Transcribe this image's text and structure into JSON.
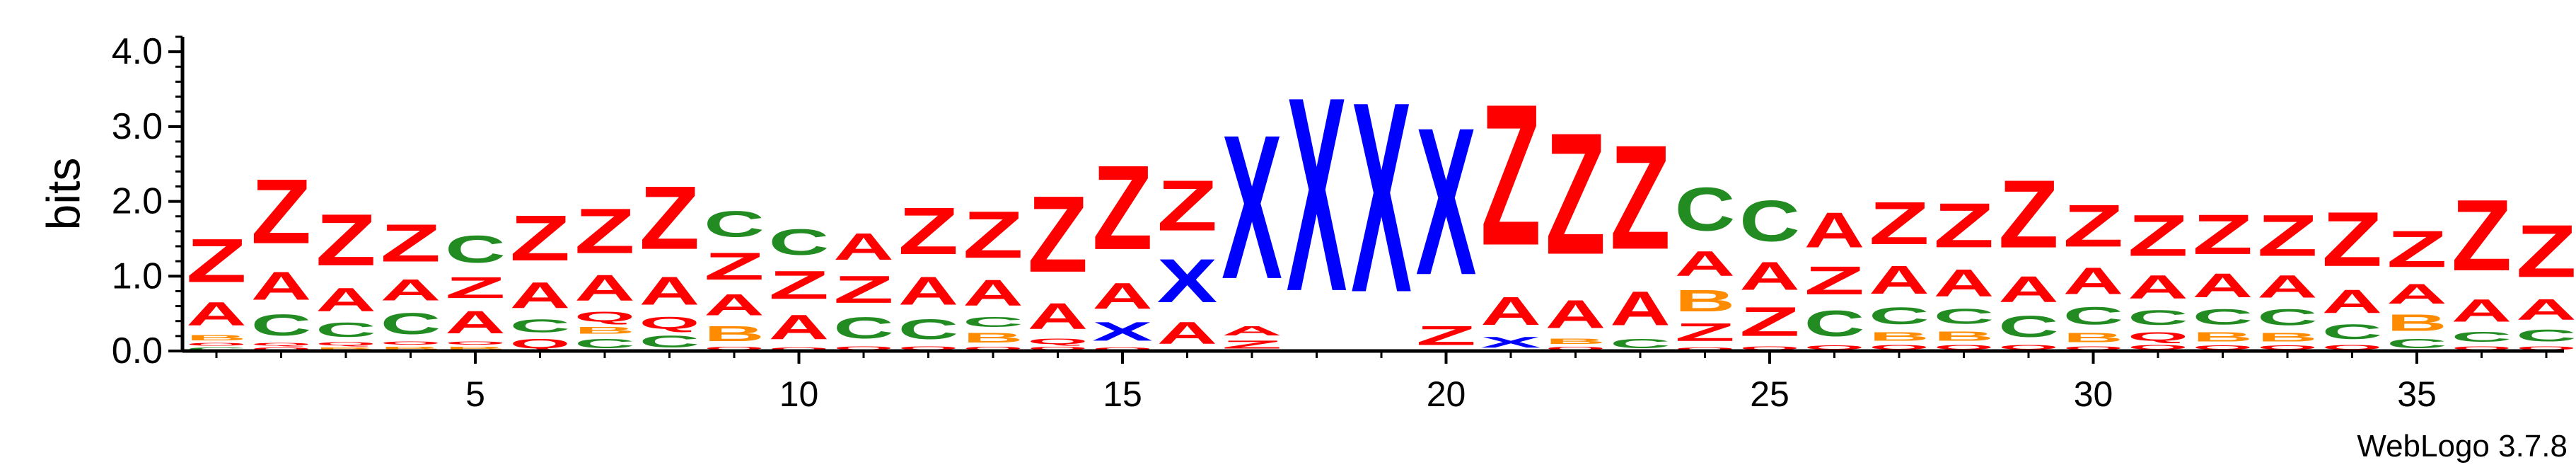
{
  "chart_data": {
    "type": "sequence-logo",
    "ylabel": "bits",
    "ylim": [
      0,
      4.2
    ],
    "yticks": [
      "0.0",
      "1.0",
      "2.0",
      "3.0",
      "4.0"
    ],
    "xticks": [
      5,
      10,
      15,
      20,
      25,
      30,
      35
    ],
    "credit": "WebLogo 3.7.8",
    "colors": {
      "Z": "#ff0000",
      "A": "#ff0000",
      "X": "#0000ff",
      "C": "#228b22",
      "B": "#ff8c00",
      "Q": "#ff0000",
      "O": "#ff0000"
    },
    "positions": [
      {
        "pos": 1,
        "letters": [
          [
            "C",
            0.06
          ],
          [
            "O",
            0.06
          ],
          [
            "B",
            0.12
          ],
          [
            "A",
            0.5
          ],
          [
            "Z",
            0.93
          ]
        ]
      },
      {
        "pos": 2,
        "letters": [
          [
            "O",
            0.06
          ],
          [
            "Q",
            0.06
          ],
          [
            "C",
            0.45
          ],
          [
            "A",
            0.6
          ],
          [
            "Z",
            1.38
          ]
        ]
      },
      {
        "pos": 3,
        "letters": [
          [
            "B",
            0.06
          ],
          [
            "Q",
            0.07
          ],
          [
            "C",
            0.3
          ],
          [
            "A",
            0.5
          ],
          [
            "Z",
            1.1
          ]
        ]
      },
      {
        "pos": 4,
        "letters": [
          [
            "B",
            0.07
          ],
          [
            "O",
            0.07
          ],
          [
            "C",
            0.45
          ],
          [
            "A",
            0.45
          ],
          [
            "Z",
            0.8
          ]
        ]
      },
      {
        "pos": 5,
        "letters": [
          [
            "B",
            0.07
          ],
          [
            "O",
            0.07
          ],
          [
            "A",
            0.48
          ],
          [
            "Z",
            0.45
          ],
          [
            "C",
            0.58
          ]
        ]
      },
      {
        "pos": 6,
        "letters": [
          [
            "Q",
            0.2
          ],
          [
            "C",
            0.27
          ],
          [
            "A",
            0.55
          ],
          [
            "Z",
            0.97
          ]
        ]
      },
      {
        "pos": 7,
        "letters": [
          [
            "C",
            0.2
          ],
          [
            "B",
            0.15
          ],
          [
            "Q",
            0.22
          ],
          [
            "A",
            0.55
          ],
          [
            "Z",
            0.96
          ]
        ]
      },
      {
        "pos": 8,
        "letters": [
          [
            "C",
            0.25
          ],
          [
            "Q",
            0.25
          ],
          [
            "A",
            0.6
          ],
          [
            "Z",
            1.35
          ]
        ]
      },
      {
        "pos": 9,
        "letters": [
          [
            "O",
            0.07
          ],
          [
            "B",
            0.32
          ],
          [
            "A",
            0.45
          ],
          [
            "Z",
            0.58
          ],
          [
            "C",
            0.55
          ]
        ]
      },
      {
        "pos": 10,
        "letters": [
          [
            "O",
            0.06
          ],
          [
            "A",
            0.52
          ],
          [
            "Z",
            0.6
          ],
          [
            "C",
            0.55
          ]
        ]
      },
      {
        "pos": 11,
        "letters": [
          [
            "O",
            0.08
          ],
          [
            "C",
            0.45
          ],
          [
            "Z",
            0.58
          ],
          [
            "A",
            0.57
          ]
        ]
      },
      {
        "pos": 12,
        "letters": [
          [
            "O",
            0.08
          ],
          [
            "C",
            0.42
          ],
          [
            "A",
            0.6
          ],
          [
            "Z",
            1.0
          ]
        ]
      },
      {
        "pos": 13,
        "letters": [
          [
            "Q",
            0.07
          ],
          [
            "B",
            0.21
          ],
          [
            "C",
            0.22
          ],
          [
            "A",
            0.55
          ],
          [
            "Z",
            1.0
          ]
        ]
      },
      {
        "pos": 14,
        "letters": [
          [
            "O",
            0.07
          ],
          [
            "Q",
            0.12
          ],
          [
            "A",
            0.55
          ],
          [
            "Z",
            1.63
          ]
        ]
      },
      {
        "pos": 15,
        "letters": [
          [
            "O",
            0.06
          ],
          [
            "X",
            0.4
          ],
          [
            "A",
            0.55
          ],
          [
            "Z",
            1.8
          ]
        ]
      },
      {
        "pos": 16,
        "letters": [
          [
            "A",
            0.47
          ],
          [
            "X",
            0.93
          ],
          [
            "Z",
            1.08
          ]
        ]
      },
      {
        "pos": 17,
        "letters": [
          [
            "Z",
            0.17
          ],
          [
            "A",
            0.2
          ],
          [
            "X",
            3.08
          ]
        ]
      },
      {
        "pos": 18,
        "letters": [
          [
            "X",
            4.15
          ]
        ]
      },
      {
        "pos": 19,
        "letters": [
          [
            "X",
            4.07
          ]
        ]
      },
      {
        "pos": 20,
        "letters": [
          [
            "Z",
            0.41
          ],
          [
            "X",
            3.15
          ]
        ]
      },
      {
        "pos": 21,
        "letters": [
          [
            "X",
            0.23
          ],
          [
            "A",
            0.6
          ],
          [
            "Z",
            3.02
          ]
        ]
      },
      {
        "pos": 22,
        "letters": [
          [
            "Q",
            0.07
          ],
          [
            "B",
            0.12
          ],
          [
            "A",
            0.6
          ],
          [
            "Z",
            2.6
          ]
        ]
      },
      {
        "pos": 23,
        "letters": [
          [
            "C",
            0.2
          ],
          [
            "A",
            0.73
          ],
          [
            "Z",
            2.23
          ]
        ]
      },
      {
        "pos": 24,
        "letters": [
          [
            "Q",
            0.06
          ],
          [
            "Z",
            0.38
          ],
          [
            "B",
            0.46
          ],
          [
            "A",
            0.53
          ],
          [
            "C",
            0.92
          ]
        ]
      },
      {
        "pos": 25,
        "letters": [
          [
            "Q",
            0.08
          ],
          [
            "Z",
            0.62
          ],
          [
            "A",
            0.6
          ],
          [
            "C",
            0.88
          ]
        ]
      },
      {
        "pos": 26,
        "letters": [
          [
            "O",
            0.09
          ],
          [
            "C",
            0.55
          ],
          [
            "Z",
            0.6
          ],
          [
            "A",
            0.75
          ]
        ]
      },
      {
        "pos": 27,
        "letters": [
          [
            "O",
            0.1
          ],
          [
            "B",
            0.19
          ],
          [
            "C",
            0.36
          ],
          [
            "A",
            0.6
          ],
          [
            "Z",
            0.91
          ]
        ]
      },
      {
        "pos": 28,
        "letters": [
          [
            "O",
            0.1
          ],
          [
            "B",
            0.2
          ],
          [
            "C",
            0.32
          ],
          [
            "A",
            0.58
          ],
          [
            "Z",
            0.95
          ]
        ]
      },
      {
        "pos": 29,
        "letters": [
          [
            "O",
            0.1
          ],
          [
            "C",
            0.45
          ],
          [
            "A",
            0.55
          ],
          [
            "Z",
            1.45
          ]
        ]
      },
      {
        "pos": 30,
        "letters": [
          [
            "O",
            0.08
          ],
          [
            "B",
            0.2
          ],
          [
            "C",
            0.37
          ],
          [
            "A",
            0.57
          ],
          [
            "Z",
            0.9
          ]
        ]
      },
      {
        "pos": 31,
        "letters": [
          [
            "O",
            0.1
          ],
          [
            "Q",
            0.19
          ],
          [
            "C",
            0.31
          ],
          [
            "A",
            0.5
          ],
          [
            "Z",
            0.88
          ]
        ]
      },
      {
        "pos": 32,
        "letters": [
          [
            "O",
            0.09
          ],
          [
            "B",
            0.2
          ],
          [
            "C",
            0.33
          ],
          [
            "A",
            0.51
          ],
          [
            "Z",
            0.85
          ]
        ]
      },
      {
        "pos": 33,
        "letters": [
          [
            "O",
            0.09
          ],
          [
            "B",
            0.19
          ],
          [
            "C",
            0.34
          ],
          [
            "A",
            0.48
          ],
          [
            "Z",
            0.88
          ]
        ]
      },
      {
        "pos": 34,
        "letters": [
          [
            "Q",
            0.1
          ],
          [
            "C",
            0.31
          ],
          [
            "A",
            0.5
          ],
          [
            "Z",
            1.16
          ]
        ]
      },
      {
        "pos": 35,
        "letters": [
          [
            "C",
            0.2
          ],
          [
            "B",
            0.35
          ],
          [
            "A",
            0.42
          ],
          [
            "Z",
            0.78
          ]
        ]
      },
      {
        "pos": 36,
        "letters": [
          [
            "O",
            0.08
          ],
          [
            "C",
            0.22
          ],
          [
            "A",
            0.48
          ],
          [
            "Z",
            1.52
          ]
        ]
      },
      {
        "pos": 37,
        "letters": [
          [
            "O",
            0.08
          ],
          [
            "C",
            0.25
          ],
          [
            "A",
            0.44
          ],
          [
            "Z",
            1.12
          ]
        ]
      }
    ]
  }
}
